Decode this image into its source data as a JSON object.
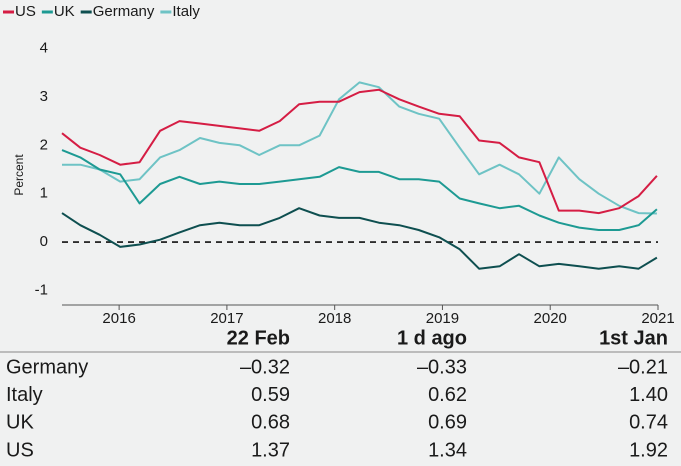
{
  "chart_data": {
    "type": "line",
    "y_label": "Percent",
    "x": [
      2015.47,
      2015.64,
      2015.82,
      2016.01,
      2016.19,
      2016.38,
      2016.56,
      2016.75,
      2016.93,
      2017.12,
      2017.3,
      2017.49,
      2017.67,
      2017.86,
      2018.04,
      2018.23,
      2018.41,
      2018.6,
      2018.78,
      2018.97,
      2019.16,
      2019.34,
      2019.53,
      2019.71,
      2019.9,
      2020.08,
      2020.27,
      2020.45,
      2020.64,
      2020.82,
      2020.99
    ],
    "series": [
      {
        "name": "US",
        "color": "#d51d44",
        "values": [
          2.25,
          1.95,
          1.8,
          1.6,
          1.65,
          2.3,
          2.5,
          2.45,
          2.4,
          2.35,
          2.3,
          2.5,
          2.85,
          2.9,
          2.9,
          3.1,
          3.15,
          2.95,
          2.8,
          2.65,
          2.6,
          2.1,
          2.05,
          1.75,
          1.65,
          0.65,
          0.65,
          0.6,
          0.7,
          0.95,
          1.37
        ]
      },
      {
        "name": "UK",
        "color": "#1d9a93",
        "values": [
          1.9,
          1.75,
          1.5,
          1.4,
          0.8,
          1.2,
          1.35,
          1.2,
          1.25,
          1.2,
          1.2,
          1.25,
          1.3,
          1.35,
          1.55,
          1.45,
          1.45,
          1.3,
          1.3,
          1.25,
          0.9,
          0.8,
          0.7,
          0.75,
          0.55,
          0.4,
          0.3,
          0.25,
          0.25,
          0.35,
          0.68
        ]
      },
      {
        "name": "Germany",
        "color": "#0e4f50",
        "values": [
          0.6,
          0.35,
          0.15,
          -0.1,
          -0.05,
          0.05,
          0.2,
          0.35,
          0.4,
          0.35,
          0.35,
          0.5,
          0.7,
          0.55,
          0.5,
          0.5,
          0.4,
          0.35,
          0.25,
          0.1,
          -0.15,
          -0.55,
          -0.5,
          -0.25,
          -0.5,
          -0.45,
          -0.5,
          -0.55,
          -0.5,
          -0.55,
          -0.32
        ]
      },
      {
        "name": "Italy",
        "color": "#6ec3c5",
        "values": [
          1.6,
          1.6,
          1.5,
          1.25,
          1.3,
          1.75,
          1.9,
          2.15,
          2.05,
          2.0,
          1.8,
          2.0,
          2.0,
          2.2,
          2.95,
          3.3,
          3.2,
          2.8,
          2.65,
          2.55,
          1.95,
          1.4,
          1.6,
          1.4,
          1.0,
          1.75,
          1.3,
          1.0,
          0.75,
          0.6,
          0.59
        ]
      }
    ],
    "xlim": [
      2015.47,
      2021.0
    ],
    "xticks": [
      2016,
      2017,
      2018,
      2019,
      2020,
      2021
    ],
    "ylim": [
      -1.3,
      4.3
    ],
    "yticks": [
      -1,
      0,
      1,
      2,
      3,
      4
    ]
  },
  "table": {
    "headers": [
      "22 Feb",
      "1 d ago",
      "1st Jan"
    ],
    "rows": [
      [
        "Germany",
        "–0.32",
        "–0.33",
        "–0.21"
      ],
      [
        "Italy",
        "0.59",
        "0.62",
        "1.40"
      ],
      [
        "UK",
        "0.68",
        "0.69",
        "0.74"
      ],
      [
        "US",
        "1.37",
        "1.34",
        "1.92"
      ]
    ]
  }
}
